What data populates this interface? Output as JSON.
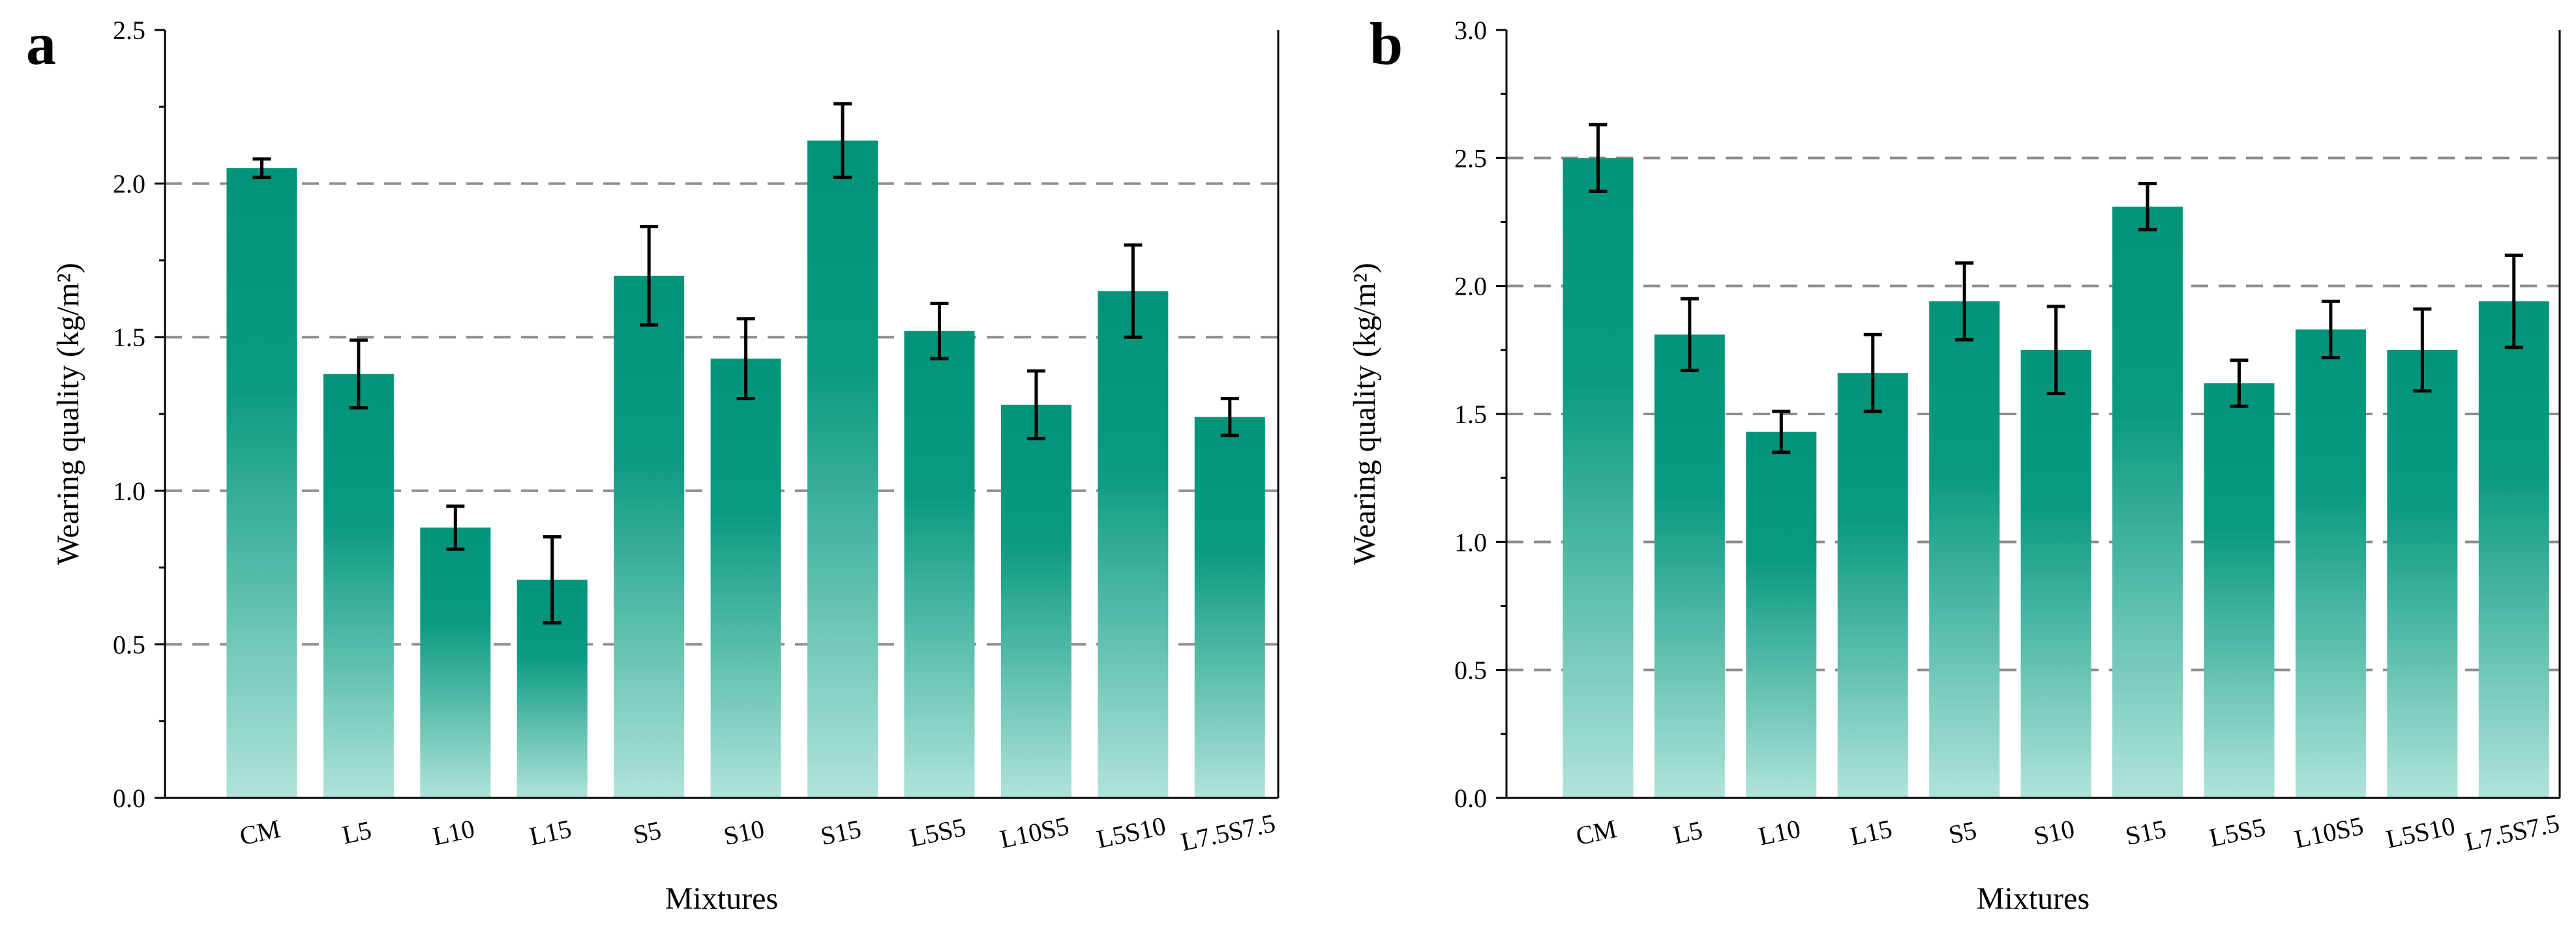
{
  "figure": {
    "panels": [
      "a",
      "b"
    ]
  },
  "colors": {
    "bar_top": "#009479",
    "bar_bottom": "#b0e3db",
    "grid": "#8c8c8c",
    "axis": "#000000",
    "error_bar": "#000000"
  },
  "chart_data": [
    {
      "panel": "a",
      "type": "bar",
      "xlabel": "Mixtures",
      "ylabel": "Wearing quality (kg/m²)",
      "ylim": [
        0,
        2.5
      ],
      "yticks": [
        "0.0",
        "0.5",
        "1.0",
        "1.5",
        "2.0",
        "2.5"
      ],
      "grid": {
        "axis": "y",
        "style": "dashed",
        "at": [
          0.5,
          1.0,
          1.5,
          2.0
        ]
      },
      "categories": [
        "CM",
        "L5",
        "L10",
        "L15",
        "S5",
        "S10",
        "S15",
        "L5S5",
        "L10S5",
        "L5S10",
        "L7.5S7.5"
      ],
      "values": [
        2.05,
        1.38,
        0.88,
        0.71,
        1.7,
        1.43,
        2.14,
        1.52,
        1.28,
        1.65,
        1.24
      ],
      "errors": [
        0.03,
        0.11,
        0.07,
        0.14,
        0.16,
        0.13,
        0.12,
        0.09,
        0.11,
        0.15,
        0.06
      ]
    },
    {
      "panel": "b",
      "type": "bar",
      "xlabel": "Mixtures",
      "ylabel": "Wearing quality (kg/m²)",
      "ylim": [
        0,
        3.0
      ],
      "yticks": [
        "0.0",
        "0.5",
        "1.0",
        "1.5",
        "2.0",
        "2.5",
        "3.0"
      ],
      "grid": {
        "axis": "y",
        "style": "dashed",
        "at": [
          0.5,
          1.0,
          1.5,
          2.0,
          2.5
        ]
      },
      "categories": [
        "CM",
        "L5",
        "L10",
        "L15",
        "S5",
        "S10",
        "S15",
        "L5S5",
        "L10S5",
        "L5S10",
        "L7.5S7.5"
      ],
      "values": [
        2.5,
        1.81,
        1.43,
        1.66,
        1.94,
        1.75,
        2.31,
        1.62,
        1.83,
        1.75,
        1.94
      ],
      "errors": [
        0.13,
        0.14,
        0.08,
        0.15,
        0.15,
        0.17,
        0.09,
        0.09,
        0.11,
        0.16,
        0.18
      ]
    }
  ]
}
